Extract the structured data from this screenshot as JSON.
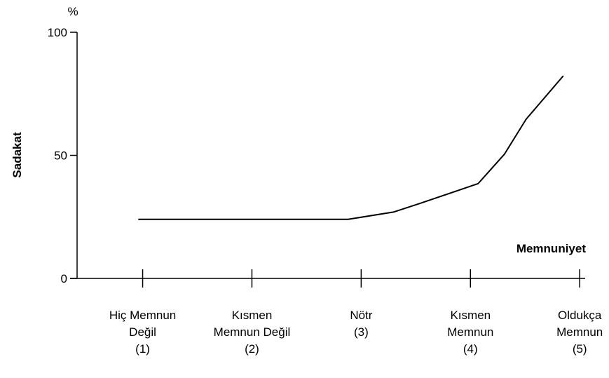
{
  "chart_data": {
    "type": "line",
    "y_unit": "%",
    "ylabel": "Sadakat",
    "xlabel": "Memnuniyet",
    "x": [
      0.96,
      1.5,
      2.0,
      2.5,
      2.88,
      3.3,
      3.54,
      4.07,
      4.31,
      4.51,
      4.85
    ],
    "values": [
      24,
      24,
      24,
      24,
      24,
      27,
      30.5,
      38.5,
      50.4,
      64.7,
      82.3
    ],
    "color": "#000000",
    "xlim": [
      0.4,
      5.05
    ],
    "ylim": [
      0,
      100
    ],
    "yticks": [
      0,
      50,
      100
    ],
    "xticks": [
      {
        "value": 1,
        "label": "Hiç Memnun\nDeğil\n(1)"
      },
      {
        "value": 2,
        "label": "Kısmen\nMemnun Değil\n(2)"
      },
      {
        "value": 3,
        "label": "Nötr\n(3)"
      },
      {
        "value": 4,
        "label": "Kısmen\nMemnun\n(4)"
      },
      {
        "value": 5,
        "label": "Oldukça\nMemnun\n(5)"
      }
    ],
    "grid": false
  }
}
